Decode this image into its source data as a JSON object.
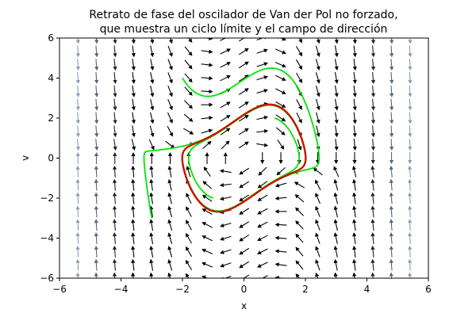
{
  "chart_data": {
    "type": "phase-portrait",
    "title_lines": [
      "Retrato de fase del oscilador de Van der Pol no forzado,",
      "que muestra un ciclo límite y el campo de dirección"
    ],
    "xlabel": "x",
    "ylabel": "v",
    "xlim": [
      -6,
      6
    ],
    "ylim": [
      -6,
      6
    ],
    "xticks": [
      -6,
      -4,
      -2,
      0,
      2,
      4,
      6
    ],
    "yticks": [
      -6,
      -4,
      -2,
      0,
      2,
      4,
      6
    ],
    "tick_labels_x": [
      "−6",
      "−4",
      "−2",
      "0",
      "2",
      "4",
      "6"
    ],
    "tick_labels_y": [
      "−6",
      "−4",
      "−2",
      "0",
      "2",
      "4",
      "6"
    ],
    "mu": 1.0,
    "grid": false,
    "colors": {
      "trajectory": "#00e600",
      "limit_cycle": "#dd0000",
      "arrow_dark": "#000000",
      "arrow_light": "#8a9fb5"
    },
    "direction_field": {
      "x_range": [
        -5.4,
        5.4
      ],
      "y_range": [
        -6,
        6
      ],
      "nx": 19,
      "ny": 19
    },
    "trajectories": [
      {
        "x0": -3.0,
        "v0": -3.0,
        "t_end": 9.0
      },
      {
        "x0": -2.0,
        "v0": 4.0,
        "t_end": 9.0
      },
      {
        "x0": 1.0,
        "v0": 2.0,
        "t_end": 9.0
      },
      {
        "x0": -1.0,
        "v0": -2.0,
        "t_end": 9.0
      }
    ],
    "limit_cycle": {
      "x0": 2.0,
      "v0": 0.0,
      "t_start": 30.0,
      "t_end": 37.0
    }
  }
}
